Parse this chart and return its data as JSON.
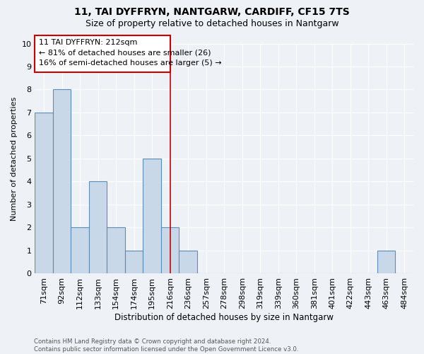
{
  "title": "11, TAI DYFFRYN, NANTGARW, CARDIFF, CF15 7TS",
  "subtitle": "Size of property relative to detached houses in Nantgarw",
  "xlabel": "Distribution of detached houses by size in Nantgarw",
  "ylabel": "Number of detached properties",
  "categories": [
    "71sqm",
    "92sqm",
    "112sqm",
    "133sqm",
    "154sqm",
    "174sqm",
    "195sqm",
    "216sqm",
    "236sqm",
    "257sqm",
    "278sqm",
    "298sqm",
    "319sqm",
    "339sqm",
    "360sqm",
    "381sqm",
    "401sqm",
    "422sqm",
    "443sqm",
    "463sqm",
    "484sqm"
  ],
  "values": [
    7,
    8,
    2,
    4,
    2,
    1,
    5,
    2,
    1,
    0,
    0,
    0,
    0,
    0,
    0,
    0,
    0,
    0,
    0,
    1,
    0
  ],
  "bar_color": "#c8d8e8",
  "bar_edge_color": "#5b8db8",
  "annotation_title": "11 TAI DYFFRYN: 212sqm",
  "annotation_line1": "← 81% of detached houses are smaller (26)",
  "annotation_line2": "16% of semi-detached houses are larger (5) →",
  "annotation_box_color": "#cc0000",
  "highlight_line_index": 7,
  "ylim": [
    0,
    10
  ],
  "yticks": [
    0,
    1,
    2,
    3,
    4,
    5,
    6,
    7,
    8,
    9,
    10
  ],
  "footer_line1": "Contains HM Land Registry data © Crown copyright and database right 2024.",
  "footer_line2": "Contains public sector information licensed under the Open Government Licence v3.0.",
  "bg_color": "#eef2f7",
  "grid_color": "#ffffff"
}
